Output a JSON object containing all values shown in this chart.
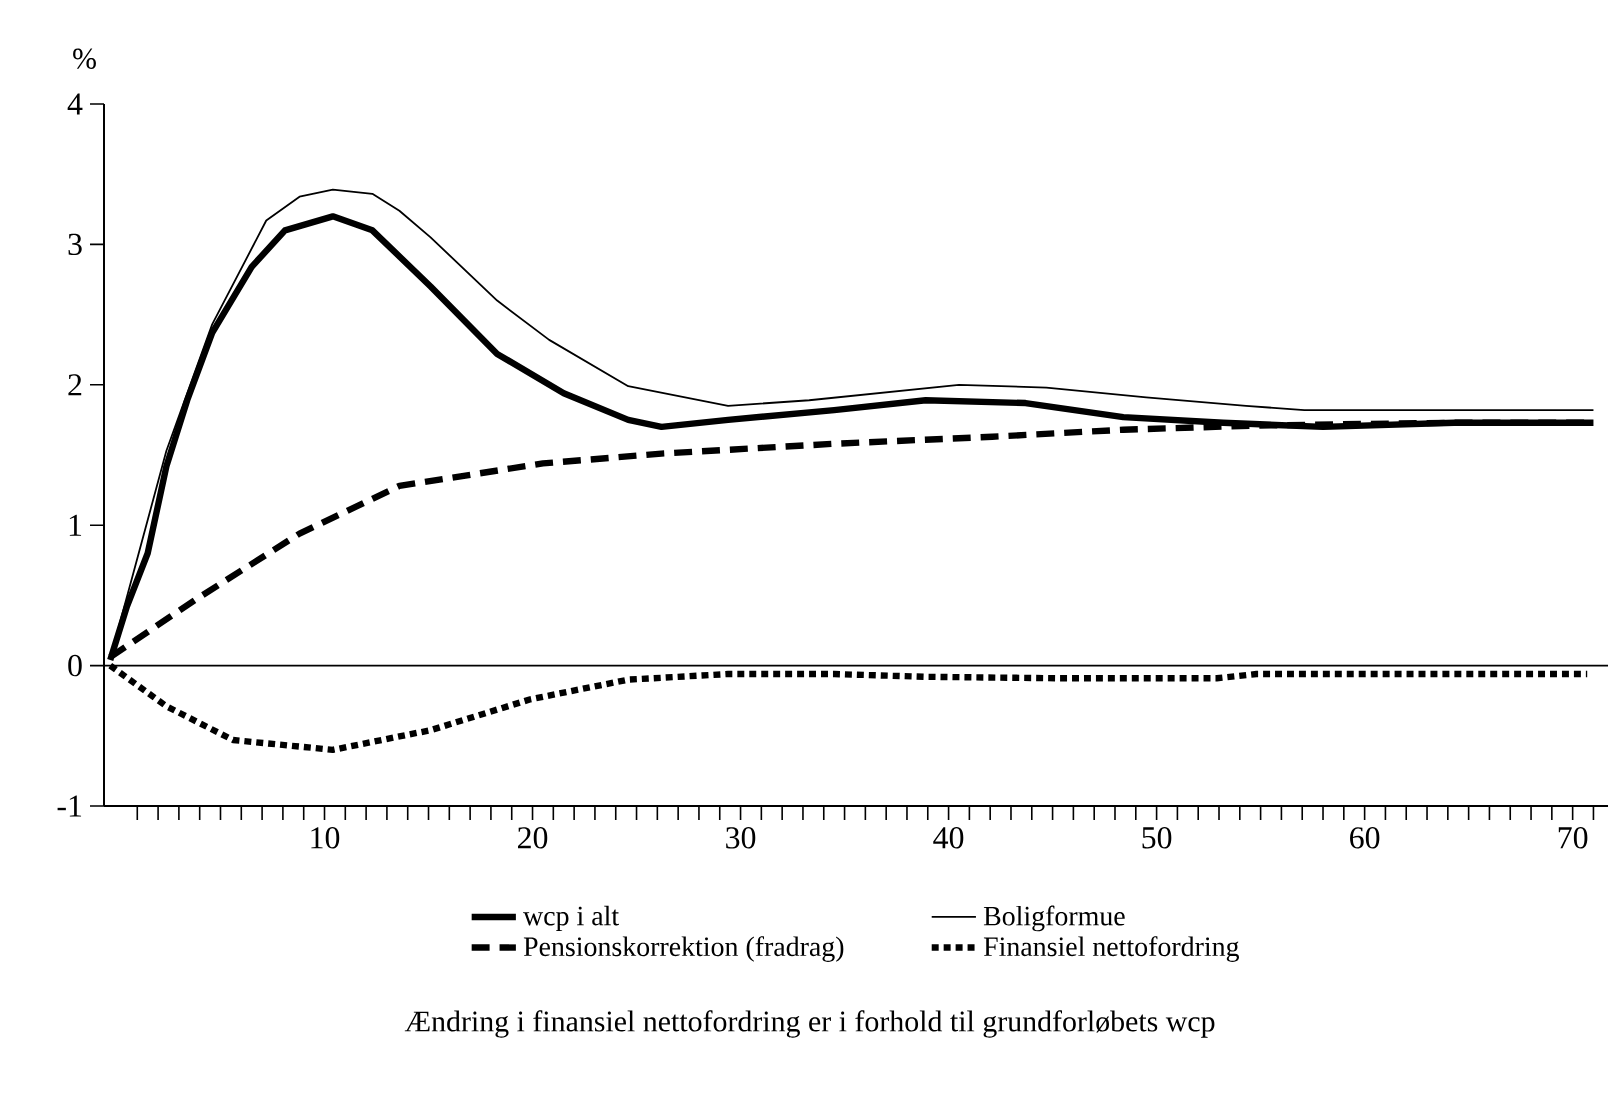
{
  "chart_data": {
    "type": "line",
    "ylabel": "%",
    "xlim": [
      -0.6,
      71.7
    ],
    "ylim": [
      -1,
      4
    ],
    "yticks": [
      -1,
      0,
      1,
      2,
      3,
      4
    ],
    "xticks": [
      {
        "value": 1,
        "label": null
      },
      {
        "value": 2,
        "label": null
      },
      {
        "value": 3,
        "label": null
      },
      {
        "value": 4,
        "label": null
      },
      {
        "value": 5,
        "label": null
      },
      {
        "value": 6,
        "label": null
      },
      {
        "value": 7,
        "label": null
      },
      {
        "value": 8,
        "label": null
      },
      {
        "value": 9,
        "label": null
      },
      10,
      {
        "value": 11,
        "label": null
      },
      {
        "value": 12,
        "label": null
      },
      {
        "value": 13,
        "label": null
      },
      {
        "value": 14,
        "label": null
      },
      {
        "value": 15,
        "label": null
      },
      {
        "value": 16,
        "label": null
      },
      {
        "value": 17,
        "label": null
      },
      {
        "value": 18,
        "label": null
      },
      {
        "value": 19,
        "label": null
      },
      20,
      {
        "value": 21,
        "label": null
      },
      {
        "value": 22,
        "label": null
      },
      {
        "value": 23,
        "label": null
      },
      {
        "value": 24,
        "label": null
      },
      {
        "value": 25,
        "label": null
      },
      {
        "value": 26,
        "label": null
      },
      {
        "value": 27,
        "label": null
      },
      {
        "value": 28,
        "label": null
      },
      {
        "value": 29,
        "label": null
      },
      30,
      {
        "value": 31,
        "label": null
      },
      {
        "value": 32,
        "label": null
      },
      {
        "value": 33,
        "label": null
      },
      {
        "value": 34,
        "label": null
      },
      {
        "value": 35,
        "label": null
      },
      {
        "value": 36,
        "label": null
      },
      {
        "value": 37,
        "label": null
      },
      {
        "value": 38,
        "label": null
      },
      {
        "value": 39,
        "label": null
      },
      40,
      {
        "value": 41,
        "label": null
      },
      {
        "value": 42,
        "label": null
      },
      {
        "value": 43,
        "label": null
      },
      {
        "value": 44,
        "label": null
      },
      {
        "value": 45,
        "label": null
      },
      {
        "value": 46,
        "label": null
      },
      {
        "value": 47,
        "label": null
      },
      {
        "value": 48,
        "label": null
      },
      {
        "value": 49,
        "label": null
      },
      50,
      {
        "value": 51,
        "label": null
      },
      {
        "value": 52,
        "label": null
      },
      {
        "value": 53,
        "label": null
      },
      {
        "value": 54,
        "label": null
      },
      {
        "value": 55,
        "label": null
      },
      {
        "value": 56,
        "label": null
      },
      {
        "value": 57,
        "label": null
      },
      {
        "value": 58,
        "label": null
      },
      {
        "value": 59,
        "label": null
      },
      60,
      {
        "value": 61,
        "label": null
      },
      {
        "value": 62,
        "label": null
      },
      {
        "value": 63,
        "label": null
      },
      {
        "value": 64,
        "label": null
      },
      {
        "value": 65,
        "label": null
      },
      {
        "value": 66,
        "label": null
      },
      {
        "value": 67,
        "label": null
      },
      {
        "value": 68,
        "label": null
      },
      {
        "value": 69,
        "label": null
      },
      70,
      {
        "value": 71,
        "label": null
      }
    ],
    "grid": false,
    "legend": "bottom",
    "marker": "none",
    "ref_lines": [
      {
        "axis": "y",
        "value": 0
      }
    ],
    "annotations": [
      "Ændring i finansiel nettofordring er i forhold til grundforløbets wcp"
    ],
    "series": [
      {
        "name": "wcp i alt",
        "color": "#000000",
        "line_style": "solid",
        "x": [
          -0.3,
          0.5,
          1.5,
          2.4,
          3.4,
          4.6,
          6.5,
          8.1,
          10.4,
          12.3,
          15.1,
          18.3,
          21.5,
          24.6,
          26.2,
          29.4,
          34.5,
          38.9,
          43.7,
          48.4,
          53.2,
          58,
          64.3,
          71
        ],
        "values": [
          0.04,
          0.42,
          0.8,
          1.42,
          1.89,
          2.37,
          2.84,
          3.1,
          3.2,
          3.1,
          2.7,
          2.22,
          1.94,
          1.75,
          1.7,
          1.75,
          1.82,
          1.89,
          1.87,
          1.77,
          1.73,
          1.7,
          1.73,
          1.73
        ]
      },
      {
        "name": "Boligformue",
        "color": "#000000",
        "line_style": "solid",
        "x": [
          -0.3,
          2.4,
          4.6,
          7.2,
          8.8,
          10.4,
          12.3,
          13.6,
          15.1,
          18.3,
          20.8,
          24.6,
          29.4,
          33.3,
          40.5,
          44.7,
          49.5,
          54.3,
          57.1,
          71
        ],
        "values": [
          0.05,
          1.53,
          2.43,
          3.17,
          3.34,
          3.39,
          3.36,
          3.24,
          3.05,
          2.6,
          2.32,
          1.99,
          1.85,
          1.89,
          2.0,
          1.98,
          1.91,
          1.85,
          1.82,
          1.82
        ]
      },
      {
        "name": "Pensionskorrektion (fradrag)",
        "color": "#000000",
        "line_style": "dashed",
        "x": [
          -0.3,
          3.8,
          8.8,
          13.6,
          20.5,
          26.2,
          34.5,
          42.1,
          48.4,
          54.8,
          64.3,
          71
        ],
        "values": [
          0.06,
          0.47,
          0.94,
          1.28,
          1.44,
          1.51,
          1.58,
          1.63,
          1.68,
          1.71,
          1.73,
          1.73
        ]
      },
      {
        "name": "Finansiel nettofordring",
        "color": "#000000",
        "line_style": "dotted",
        "x": [
          -0.3,
          2.4,
          5.6,
          10.4,
          15.1,
          19.9,
          24.6,
          29.4,
          34.5,
          38.9,
          45.3,
          52.9,
          54.8,
          70.7
        ],
        "values": [
          0,
          -0.29,
          -0.53,
          -0.6,
          -0.46,
          -0.24,
          -0.1,
          -0.06,
          -0.06,
          -0.08,
          -0.09,
          -0.09,
          -0.06,
          -0.06
        ]
      }
    ]
  }
}
